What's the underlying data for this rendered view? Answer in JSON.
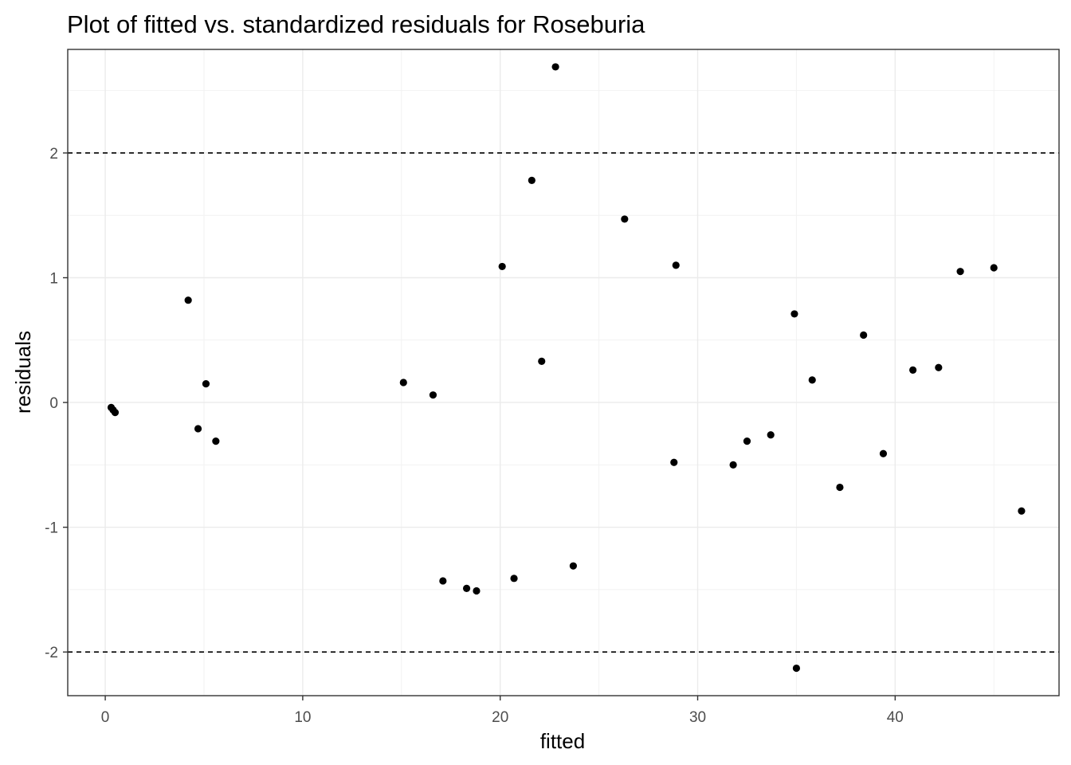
{
  "chart_data": {
    "type": "scatter",
    "title": "Plot of fitted vs. standardized residuals for Roseburia",
    "xlabel": "fitted",
    "ylabel": "residuals",
    "xlim": [
      -1.9,
      48.3
    ],
    "ylim": [
      -2.35,
      2.83
    ],
    "x_ticks": [
      0,
      10,
      20,
      30,
      40
    ],
    "x_tick_labels": [
      "0",
      "10",
      "20",
      "30",
      "40"
    ],
    "y_ticks": [
      -2,
      -1,
      0,
      1,
      2
    ],
    "y_tick_labels": [
      "-2",
      "-1",
      "0",
      "1",
      "2"
    ],
    "x_minor_ticks": [
      5,
      15,
      25,
      35,
      45
    ],
    "y_minor_ticks": [
      -1.5,
      -0.5,
      0.5,
      1.5,
      2.5
    ],
    "reference_lines": [
      2,
      -2
    ],
    "grid": true,
    "point_color": "#000000",
    "points": [
      {
        "x": 0.3,
        "y": -0.04
      },
      {
        "x": 0.4,
        "y": -0.06
      },
      {
        "x": 0.5,
        "y": -0.08
      },
      {
        "x": 4.2,
        "y": 0.82
      },
      {
        "x": 4.7,
        "y": -0.21
      },
      {
        "x": 5.1,
        "y": 0.15
      },
      {
        "x": 5.6,
        "y": -0.31
      },
      {
        "x": 15.1,
        "y": 0.16
      },
      {
        "x": 16.6,
        "y": 0.06
      },
      {
        "x": 17.1,
        "y": -1.43
      },
      {
        "x": 18.3,
        "y": -1.49
      },
      {
        "x": 18.8,
        "y": -1.51
      },
      {
        "x": 20.1,
        "y": 1.09
      },
      {
        "x": 20.7,
        "y": -1.41
      },
      {
        "x": 21.6,
        "y": 1.78
      },
      {
        "x": 22.1,
        "y": 0.33
      },
      {
        "x": 22.8,
        "y": 2.69
      },
      {
        "x": 23.7,
        "y": -1.31
      },
      {
        "x": 26.3,
        "y": 1.47
      },
      {
        "x": 28.8,
        "y": -0.48
      },
      {
        "x": 28.9,
        "y": 1.1
      },
      {
        "x": 31.8,
        "y": -0.5
      },
      {
        "x": 32.5,
        "y": -0.31
      },
      {
        "x": 33.7,
        "y": -0.26
      },
      {
        "x": 34.9,
        "y": 0.71
      },
      {
        "x": 35.0,
        "y": -2.13
      },
      {
        "x": 35.8,
        "y": 0.18
      },
      {
        "x": 37.2,
        "y": -0.68
      },
      {
        "x": 38.4,
        "y": 0.54
      },
      {
        "x": 39.4,
        "y": -0.41
      },
      {
        "x": 40.9,
        "y": 0.26
      },
      {
        "x": 42.2,
        "y": 0.28
      },
      {
        "x": 43.3,
        "y": 1.05
      },
      {
        "x": 45.0,
        "y": 1.08
      },
      {
        "x": 46.4,
        "y": -0.87
      }
    ]
  }
}
